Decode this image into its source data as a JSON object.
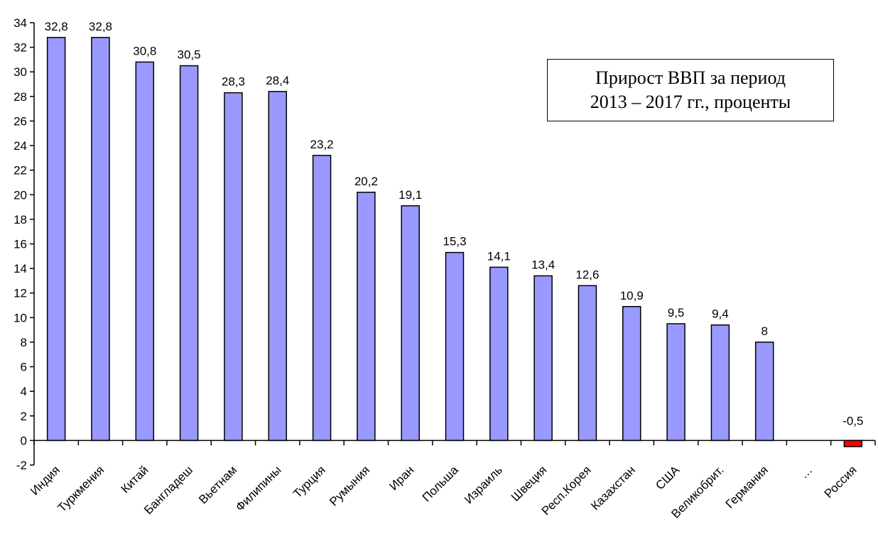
{
  "chart_data": {
    "type": "bar",
    "title_lines": [
      "Прирост ВВП за период",
      "2013 – 2017 гг., проценты"
    ],
    "categories": [
      "Индия",
      "Туркмения",
      "Китай",
      "Бангладеш",
      "Вьетнам",
      "Филипины",
      "Турция",
      "Румыния",
      "Иран",
      "Польша",
      "Израиль",
      "Швеция",
      "Респ.Корея",
      "Казахстан",
      "США",
      "Великобрит.",
      "Германия",
      "…",
      "Россия"
    ],
    "values": [
      32.8,
      32.8,
      30.8,
      30.5,
      28.3,
      28.4,
      23.2,
      20.2,
      19.1,
      15.3,
      14.1,
      13.4,
      12.6,
      10.9,
      9.5,
      9.4,
      8,
      null,
      -0.5
    ],
    "value_labels": [
      "32,8",
      "32,8",
      "30,8",
      "30,5",
      "28,3",
      "28,4",
      "23,2",
      "20,2",
      "19,1",
      "15,3",
      "14,1",
      "13,4",
      "12,6",
      "10,9",
      "9,5",
      "9,4",
      "8",
      "",
      "-0,5"
    ],
    "ylim": [
      -2,
      34
    ],
    "yticks": [
      -2,
      0,
      2,
      4,
      6,
      8,
      10,
      12,
      14,
      16,
      18,
      20,
      22,
      24,
      26,
      28,
      30,
      32,
      34
    ],
    "colors": {
      "positive": "#9999FF",
      "negative": "#FF0000",
      "outline": "#000000"
    },
    "grid": false,
    "legend": "none"
  }
}
